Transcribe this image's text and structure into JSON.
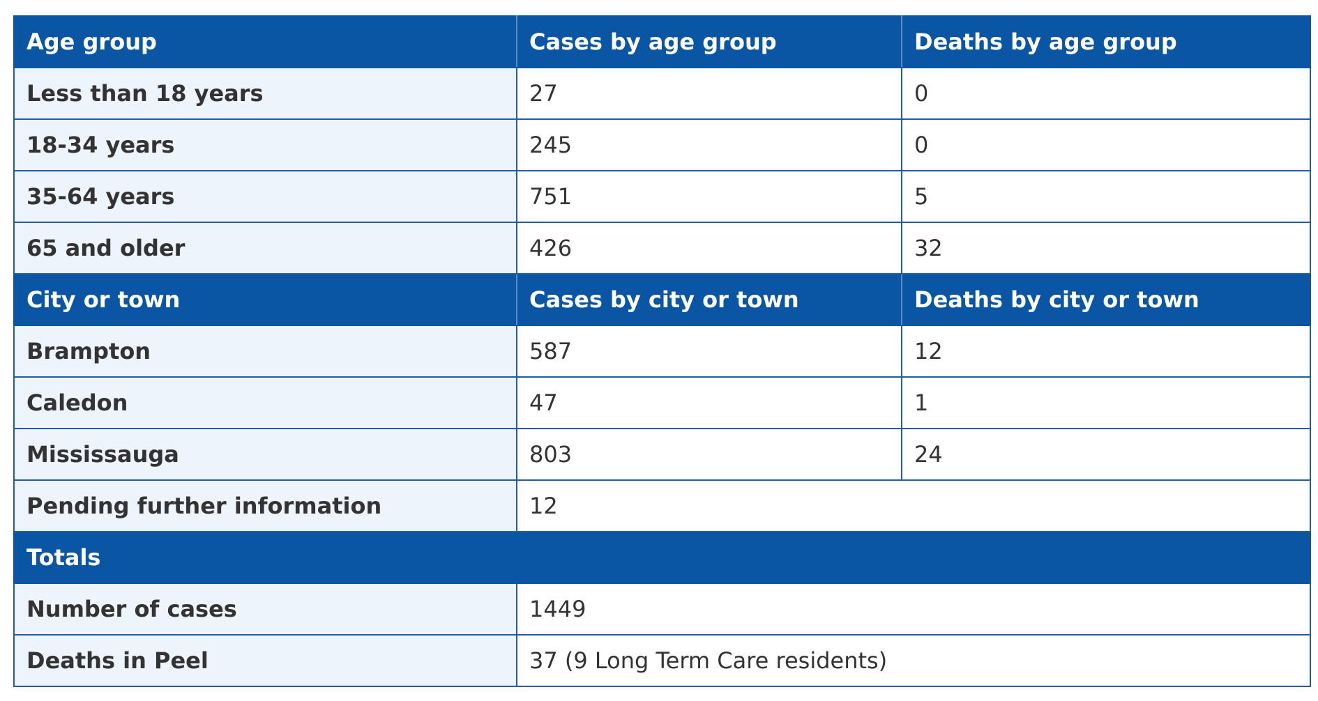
{
  "age_section": {
    "headers": [
      "Age group",
      "Cases by age group",
      "Deaths by age group"
    ],
    "rows": [
      [
        "Less than 18 years",
        "27",
        "0"
      ],
      [
        "18-34 years",
        "245",
        "0"
      ],
      [
        "35-64 years",
        "751",
        "5"
      ],
      [
        "65 and older",
        "426",
        "32"
      ]
    ]
  },
  "city_section": {
    "headers": [
      "City or town",
      "Cases by city or town",
      "Deaths by city or town"
    ],
    "rows": [
      [
        "Brampton",
        "587",
        "12"
      ],
      [
        "Caledon",
        "47",
        "1"
      ],
      [
        "Mississauga",
        "803",
        "24"
      ]
    ],
    "pending": {
      "label": "Pending further information",
      "value": "12"
    }
  },
  "totals_section": {
    "header": "Totals",
    "rows": [
      [
        "Number of cases",
        "1449"
      ],
      [
        "Deaths in Peel",
        "37 (9 Long Term Care residents)"
      ]
    ]
  },
  "colors": {
    "header_bg": "#0b56a4",
    "label_bg": "#edf4fc",
    "border": "#1f5ba8"
  }
}
